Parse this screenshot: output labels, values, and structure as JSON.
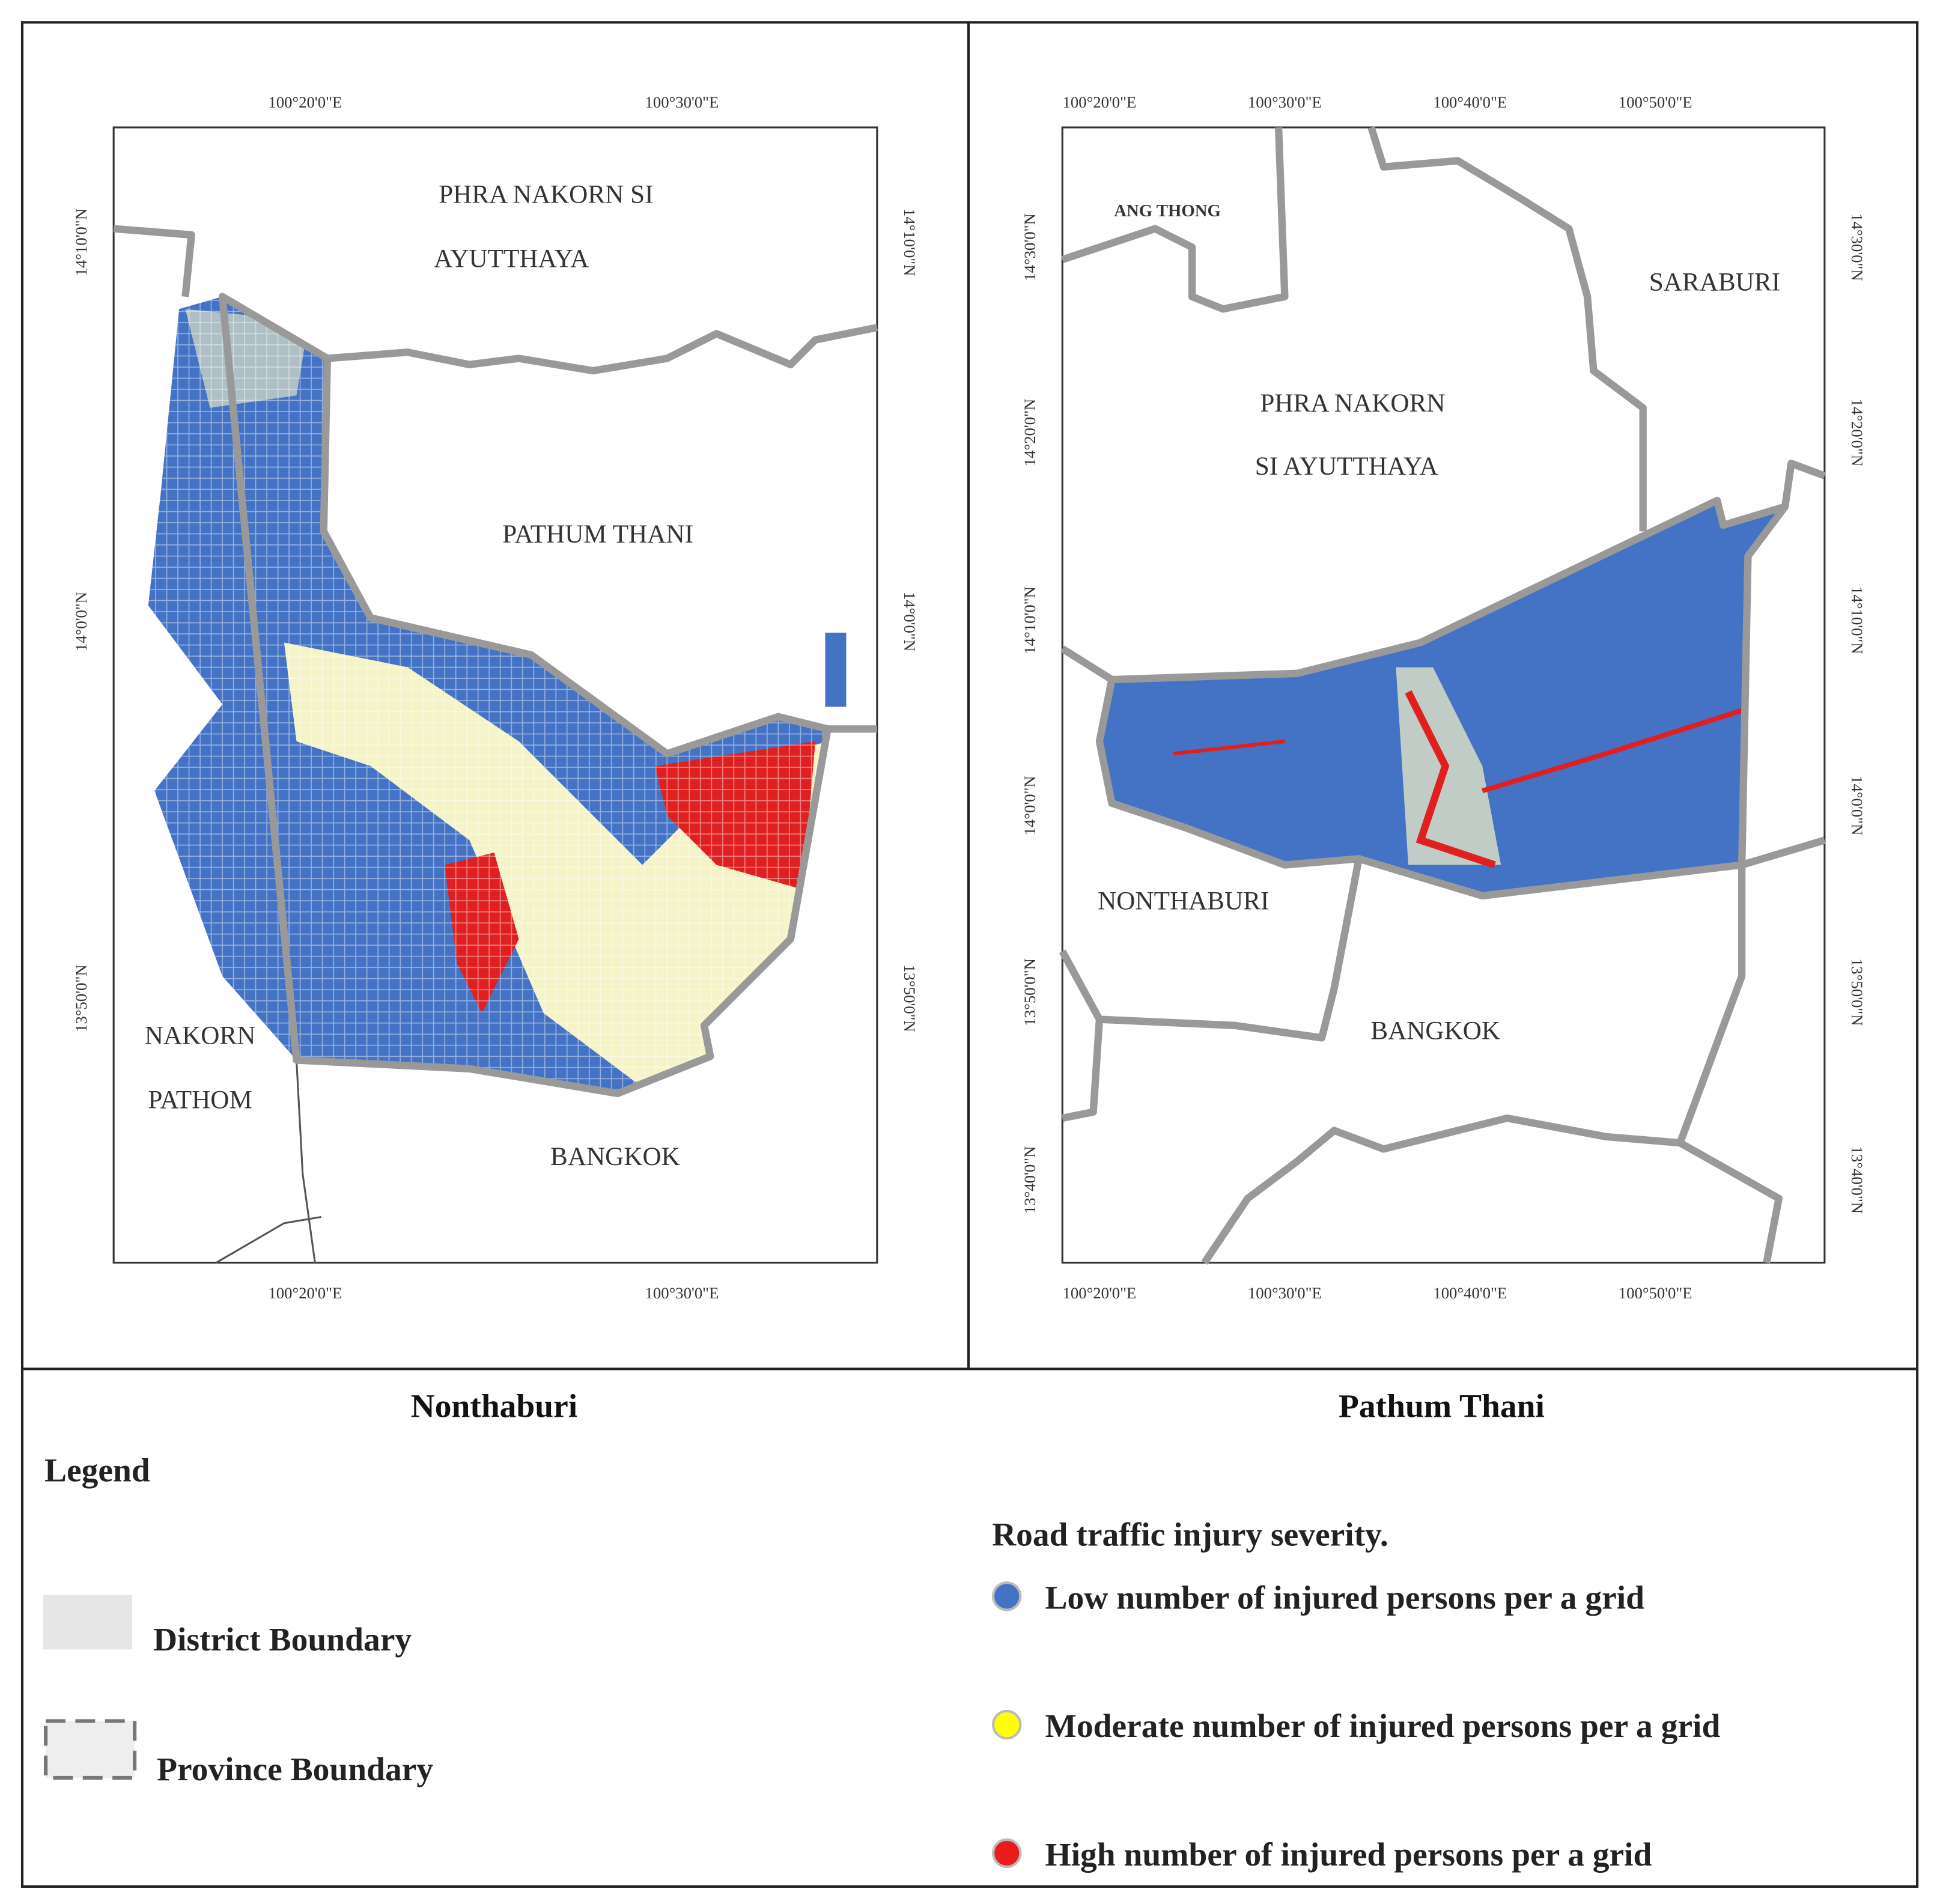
{
  "maps": [
    {
      "title": "Nonthaburi",
      "top_ticks": [
        "100°20'0\"E",
        "100°30'0\"E"
      ],
      "bottom_ticks": [
        "100°20'0\"E",
        "100°30'0\"E"
      ],
      "left_ticks": [
        "14°10'0\"N",
        "14°0'0\"N",
        "13°50'0\"N"
      ],
      "right_ticks": [
        "14°10'0\"N",
        "14°0'0\"N",
        "13°50'0\"N"
      ],
      "places": [
        "PHRA NAKORN SI",
        "AYUTTHAYA",
        "PATHUM THANI",
        "NAKORN",
        "PATHOM",
        "BANGKOK"
      ]
    },
    {
      "title": "Pathum Thani",
      "top_ticks": [
        "100°20'0\"E",
        "100°30'0\"E",
        "100°40'0\"E",
        "100°50'0\"E"
      ],
      "bottom_ticks": [
        "100°20'0\"E",
        "100°30'0\"E",
        "100°40'0\"E",
        "100°50'0\"E"
      ],
      "left_ticks": [
        "14°30'0\"N",
        "14°20'0\"N",
        "14°10'0\"N",
        "14°0'0\"N",
        "13°50'0\"N",
        "13°40'0\"N"
      ],
      "right_ticks": [
        "14°30'0\"N",
        "14°20'0\"N",
        "14°10'0\"N",
        "14°0'0\"N",
        "13°50'0\"N",
        "13°40'0\"N"
      ],
      "places": [
        "ANG THONG",
        "SARABURI",
        "PHRA  NAKORN",
        "SI AYUTTHAYA",
        "NONTHABURI",
        "BANGKOK"
      ]
    }
  ],
  "legend": {
    "title": "Legend",
    "boundaries": [
      "District Boundary",
      "Province Boundary"
    ],
    "severity_title": "Road traffic injury severity.",
    "severity_items": [
      {
        "label": "Low number of injured persons per a grid",
        "color": "#4472c4"
      },
      {
        "label": "Moderate number of injured persons per a grid",
        "color": "#ffff00"
      },
      {
        "label": "High number of injured persons per a grid",
        "color": "#e81c1c"
      }
    ]
  }
}
